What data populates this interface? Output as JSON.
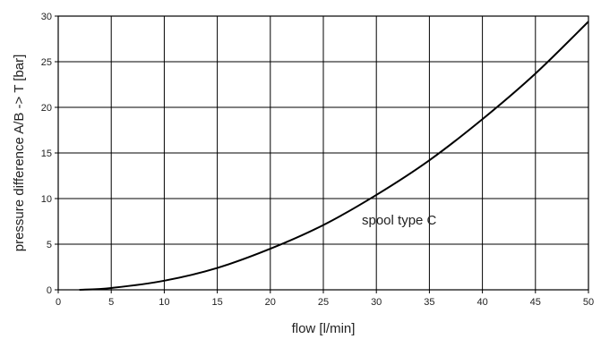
{
  "chart_data": {
    "type": "line",
    "title": "",
    "xlabel": "flow [l/min]",
    "ylabel": "pressure difference A/B -> T [bar]",
    "xlim": [
      0,
      50
    ],
    "ylim": [
      0,
      30
    ],
    "x_ticks": [
      0,
      5,
      10,
      15,
      20,
      25,
      30,
      35,
      40,
      45,
      50
    ],
    "y_ticks": [
      0,
      5,
      10,
      15,
      20,
      25,
      30
    ],
    "grid": true,
    "series": [
      {
        "annotation": "spool type C",
        "x": [
          2,
          5,
          10,
          15,
          20,
          25,
          30,
          35,
          40,
          45,
          50
        ],
        "y": [
          0,
          0.2,
          1.0,
          2.4,
          4.5,
          7.1,
          10.4,
          14.2,
          18.7,
          23.7,
          29.4
        ]
      }
    ]
  }
}
